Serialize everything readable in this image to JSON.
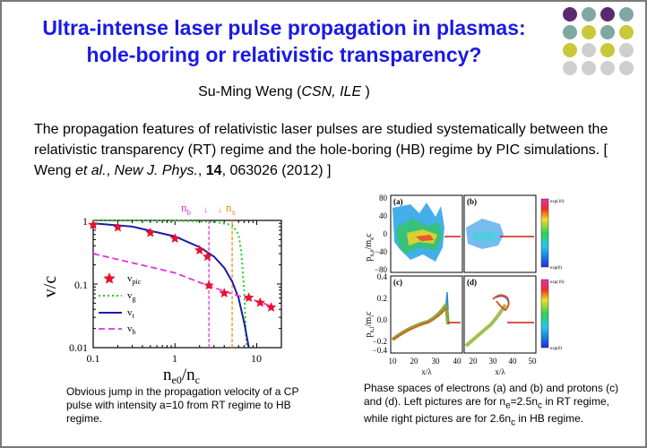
{
  "title_line1": "Ultra-intense laser pulse propagation in plasmas:",
  "title_line2": "hole-boring or relativistic transparency?",
  "author_name": "Su-Ming Weng (",
  "author_affil": "CSN, ILE",
  "author_close": " )",
  "abstract": {
    "text": "The propagation features of relativistic laser pulses are studied systematically between the relativistic transparency (RT) regime and the hole-boring (HB) regime by PIC simulations. [ Weng ",
    "etal": "et al.",
    "comma1": ", ",
    "journal": "New J. Phys.",
    "comma2": ", ",
    "volume": "14",
    "rest": ", 063026 (2012) ]"
  },
  "left_plot": {
    "ylabel": "v/c",
    "xlabel": "n",
    "xlabel_sub1": "e0",
    "xlabel_slash": "/n",
    "xlabel_sub2": "c",
    "top_label_b": "n",
    "top_label_b_sub": "b",
    "top_label_x": "n",
    "top_label_x_sub": "x",
    "yticks": [
      "1",
      "0.1",
      "0.01"
    ],
    "xticks": [
      "0.1",
      "1",
      "10"
    ],
    "legend": [
      {
        "label": "v",
        "sub": "pic"
      },
      {
        "label": "v",
        "sub": "g"
      },
      {
        "label": "v",
        "sub": "t"
      },
      {
        "label": "v",
        "sub": "b"
      }
    ],
    "colors": {
      "pic": "#e8112d",
      "g": "#22cc22",
      "t": "#1a1aa8",
      "b": "#e030e0",
      "nb_line": "#e030e0",
      "nx_line": "#f08a00"
    }
  },
  "chart_data": {
    "type": "scatter",
    "xlabel": "n_e0/n_c",
    "ylabel": "v/c",
    "xscale": "log",
    "yscale": "log",
    "xlim": [
      0.1,
      20
    ],
    "ylim": [
      0.01,
      1
    ],
    "series": [
      {
        "name": "v_pic",
        "x": [
          0.1,
          0.2,
          0.5,
          1.0,
          2.0,
          2.5,
          2.6,
          4.0,
          8.0,
          11.0,
          15.0
        ],
        "y": [
          0.85,
          0.78,
          0.64,
          0.52,
          0.34,
          0.27,
          0.095,
          0.072,
          0.061,
          0.051,
          0.043
        ]
      },
      {
        "name": "v_g",
        "x": [
          0.1,
          1,
          3,
          5,
          6,
          6.5,
          7,
          7.5
        ],
        "y": [
          1.0,
          0.99,
          0.95,
          0.85,
          0.6,
          0.3,
          0.08,
          0.01
        ]
      },
      {
        "name": "v_t",
        "x": [
          0.1,
          0.3,
          1,
          2,
          3,
          4,
          5,
          6,
          7,
          8
        ],
        "y": [
          0.9,
          0.8,
          0.56,
          0.38,
          0.27,
          0.18,
          0.11,
          0.06,
          0.025,
          0.01
        ]
      },
      {
        "name": "v_b",
        "x": [
          0.1,
          1,
          2.5,
          5,
          10,
          15
        ],
        "y": [
          0.3,
          0.15,
          0.095,
          0.07,
          0.054,
          0.045
        ]
      }
    ],
    "vlines": [
      {
        "name": "n_b",
        "x": 2.6
      },
      {
        "name": "n_x",
        "x": 5.0
      }
    ]
  },
  "right_plot": {
    "panels": [
      {
        "label": "(a)"
      },
      {
        "label": "(b)"
      },
      {
        "label": "(c)"
      },
      {
        "label": "(d)"
      }
    ],
    "ylabel_top": "p",
    "ylabel_top_sub": "x,e",
    "ylabel_top_tail": "/m",
    "ylabel_top_tail_sub": "e",
    "ylabel_top_end": "c",
    "ylabel_bottom": "p",
    "ylabel_bottom_sub": "x,i",
    "ylabel_bottom_tail": "/m",
    "ylabel_bottom_tail_sub": "i",
    "ylabel_bottom_end": "c",
    "yticks_top": [
      "80",
      "40",
      "0",
      "−40",
      "−80"
    ],
    "yticks_bottom": [
      "0.4",
      "0.2",
      "0.0",
      "−0.2",
      "−0.4"
    ],
    "xticks_left": [
      "10",
      "20",
      "30",
      "40"
    ],
    "xticks_right": [
      "20",
      "30",
      "40",
      "50"
    ],
    "xlabel": "x/λ",
    "colorbar_top": "exp(10)",
    "colorbar_bottom": "exp(0)"
  },
  "caption_left": "Obvious jump in the propagation velocity of a CP pulse with intensity a=10 from RT regime to HB regime.",
  "caption_right": {
    "p1": "Phase spaces of electrons (a) and (b) and protons (c) and (d). Left pictures are for n",
    "sub1": "e",
    "p2": "=2.5n",
    "sub2": "c",
    "p3": " in RT regime, while right pictures are for 2.6n",
    "sub3": "c",
    "p4": " in HB regime."
  },
  "decor": {
    "dot_colors": [
      "#5a2a6e",
      "#7fa8a2",
      "#c8c83a",
      "#cfcfcf"
    ]
  }
}
